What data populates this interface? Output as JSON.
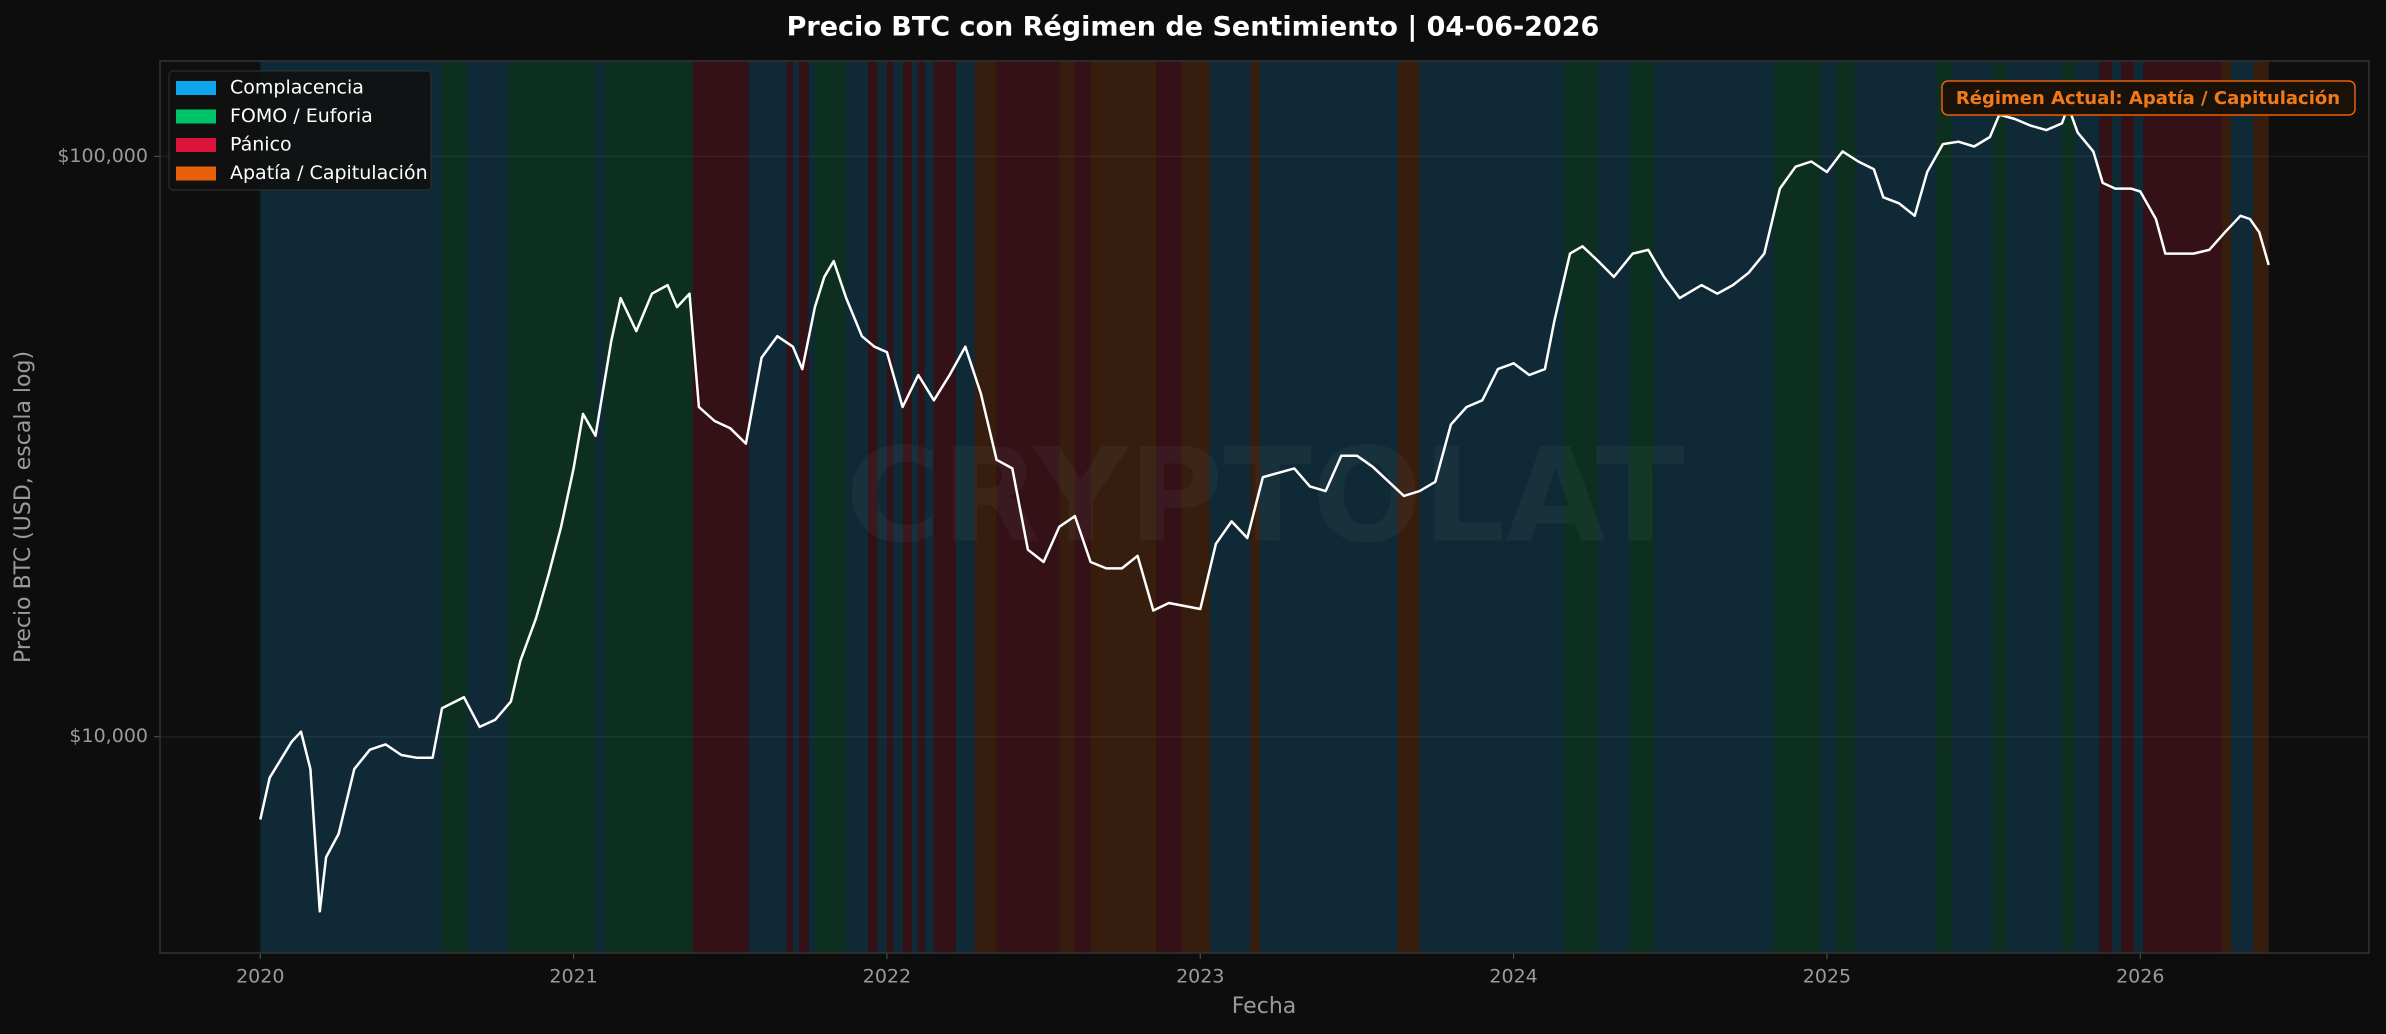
{
  "chart_data": {
    "type": "line",
    "title": "Precio BTC con Régimen de Sentimiento  |  04-06-2026",
    "xlabel": "Fecha",
    "ylabel": "Precio BTC (USD, escala log)",
    "annotation": "Régimen Actual: Apatía / Capitulación",
    "watermark": "CRYPTOLAT",
    "yscale": "log",
    "grid": true,
    "legend": "upper left",
    "color": "#ffffff",
    "xlim": [
      2019.68,
      2026.73
    ],
    "xticks": [
      2020,
      2021,
      2022,
      2023,
      2024,
      2025,
      2026
    ],
    "ylim": [
      4240,
      146000
    ],
    "yticks": [
      {
        "value": 10000,
        "label": "$10,000"
      },
      {
        "value": 100000,
        "label": "$100,000"
      }
    ],
    "regimes": [
      {
        "name": "Complacencia",
        "color": "#0ea5e9",
        "spans": [
          [
            2020.0,
            2020.58
          ],
          [
            2020.66,
            2020.79
          ],
          [
            2021.07,
            2021.1
          ],
          [
            2021.56,
            2021.68
          ],
          [
            2021.7,
            2021.72
          ],
          [
            2021.75,
            2021.77
          ],
          [
            2021.87,
            2021.94
          ],
          [
            2021.97,
            2022.0
          ],
          [
            2022.02,
            2022.05
          ],
          [
            2022.08,
            2022.1
          ],
          [
            2022.12,
            2022.15
          ],
          [
            2022.22,
            2022.28
          ],
          [
            2023.03,
            2023.16
          ],
          [
            2023.19,
            2023.63
          ],
          [
            2023.7,
            2024.16
          ],
          [
            2024.27,
            2024.37
          ],
          [
            2024.45,
            2024.83
          ],
          [
            2024.98,
            2025.03
          ],
          [
            2025.09,
            2025.35
          ],
          [
            2025.4,
            2025.53
          ],
          [
            2025.57,
            2025.75
          ],
          [
            2025.79,
            2025.87
          ],
          [
            2025.91,
            2025.94
          ],
          [
            2025.98,
            2026.01
          ],
          [
            2026.29,
            2026.36
          ]
        ]
      },
      {
        "name": "FOMO / Euforia",
        "color": "#00c46a",
        "spans": [
          [
            2020.58,
            2020.66
          ],
          [
            2020.79,
            2021.07
          ],
          [
            2021.1,
            2021.38
          ],
          [
            2021.77,
            2021.87
          ],
          [
            2024.16,
            2024.27
          ],
          [
            2024.37,
            2024.45
          ],
          [
            2024.83,
            2024.98
          ],
          [
            2025.03,
            2025.09
          ],
          [
            2025.35,
            2025.4
          ],
          [
            2025.53,
            2025.57
          ],
          [
            2025.75,
            2025.79
          ]
        ]
      },
      {
        "name": "Pánico",
        "color": "#dc143c",
        "spans": [
          [
            2021.38,
            2021.56
          ],
          [
            2021.68,
            2021.7
          ],
          [
            2021.72,
            2021.75
          ],
          [
            2021.94,
            2021.97
          ],
          [
            2022.0,
            2022.02
          ],
          [
            2022.05,
            2022.08
          ],
          [
            2022.1,
            2022.12
          ],
          [
            2022.15,
            2022.22
          ],
          [
            2022.35,
            2022.55
          ],
          [
            2022.6,
            2022.65
          ],
          [
            2022.86,
            2022.94
          ],
          [
            2025.87,
            2025.91
          ],
          [
            2025.94,
            2025.98
          ],
          [
            2026.01,
            2026.26
          ]
        ]
      },
      {
        "name": "Apatía / Capitulación",
        "color": "#e8610a",
        "spans": [
          [
            2022.28,
            2022.35
          ],
          [
            2022.55,
            2022.6
          ],
          [
            2022.65,
            2022.86
          ],
          [
            2022.94,
            2023.03
          ],
          [
            2023.16,
            2023.19
          ],
          [
            2023.63,
            2023.7
          ],
          [
            2026.26,
            2026.29
          ],
          [
            2026.36,
            2026.41
          ]
        ]
      }
    ],
    "x": [
      2020.0,
      2020.03,
      2020.1,
      2020.13,
      2020.16,
      2020.19,
      2020.21,
      2020.25,
      2020.3,
      2020.35,
      2020.4,
      2020.45,
      2020.5,
      2020.55,
      2020.58,
      2020.65,
      2020.7,
      2020.75,
      2020.8,
      2020.83,
      2020.88,
      2020.92,
      2020.96,
      2021.0,
      2021.03,
      2021.07,
      2021.12,
      2021.15,
      2021.2,
      2021.25,
      2021.3,
      2021.33,
      2021.37,
      2021.4,
      2021.45,
      2021.5,
      2021.55,
      2021.6,
      2021.65,
      2021.7,
      2021.73,
      2021.77,
      2021.8,
      2021.83,
      2021.87,
      2021.92,
      2021.96,
      2022.0,
      2022.05,
      2022.1,
      2022.15,
      2022.2,
      2022.25,
      2022.3,
      2022.35,
      2022.4,
      2022.45,
      2022.5,
      2022.55,
      2022.6,
      2022.65,
      2022.7,
      2022.75,
      2022.8,
      2022.85,
      2022.9,
      2022.95,
      2023.0,
      2023.05,
      2023.1,
      2023.15,
      2023.2,
      2023.25,
      2023.3,
      2023.35,
      2023.4,
      2023.45,
      2023.5,
      2023.55,
      2023.65,
      2023.7,
      2023.75,
      2023.8,
      2023.85,
      2023.9,
      2023.95,
      2024.0,
      2024.05,
      2024.1,
      2024.13,
      2024.18,
      2024.22,
      2024.27,
      2024.32,
      2024.38,
      2024.43,
      2024.48,
      2024.53,
      2024.6,
      2024.65,
      2024.7,
      2024.75,
      2024.8,
      2024.85,
      2024.9,
      2024.95,
      2025.0,
      2025.05,
      2025.1,
      2025.15,
      2025.18,
      2025.23,
      2025.28,
      2025.32,
      2025.37,
      2025.42,
      2025.47,
      2025.52,
      2025.55,
      2025.6,
      2025.65,
      2025.7,
      2025.75,
      2025.77,
      2025.8,
      2025.85,
      2025.88,
      2025.92,
      2025.97,
      2026.0,
      2026.05,
      2026.08,
      2026.12,
      2026.17,
      2026.22,
      2026.27,
      2026.32,
      2026.35,
      2026.38,
      2026.41
    ],
    "values": [
      7200,
      8500,
      9800,
      10200,
      8800,
      5000,
      6200,
      6800,
      8800,
      9500,
      9700,
      9300,
      9200,
      9200,
      11200,
      11700,
      10400,
      10700,
      11500,
      13500,
      16000,
      19000,
      23000,
      29000,
      36000,
      33000,
      48000,
      57000,
      50000,
      58000,
      60000,
      55000,
      58000,
      37000,
      35000,
      34000,
      32000,
      45000,
      49000,
      47000,
      43000,
      55000,
      62000,
      66000,
      57000,
      49000,
      47000,
      46000,
      37000,
      42000,
      38000,
      42000,
      47000,
      39000,
      30000,
      29000,
      21000,
      20000,
      23000,
      24000,
      20000,
      19500,
      19500,
      20500,
      16500,
      17000,
      16800,
      16600,
      21500,
      23500,
      22000,
      28000,
      28500,
      29000,
      27000,
      26500,
      30500,
      30500,
      29200,
      26000,
      26500,
      27500,
      34500,
      37000,
      38000,
      43000,
      44000,
      42000,
      43000,
      52000,
      68000,
      70000,
      66000,
      62000,
      68000,
      69000,
      62000,
      57000,
      60000,
      58000,
      60000,
      63000,
      68000,
      88000,
      96000,
      98000,
      94000,
      102000,
      98000,
      95000,
      85000,
      83000,
      79000,
      94000,
      105000,
      106000,
      104000,
      108000,
      118000,
      116000,
      113000,
      111000,
      114000,
      122000,
      110000,
      102000,
      90000,
      88000,
      88000,
      87000,
      78000,
      68000,
      68000,
      68000,
      69000,
      74000,
      79000,
      78000,
      74000,
      65000
    ]
  }
}
